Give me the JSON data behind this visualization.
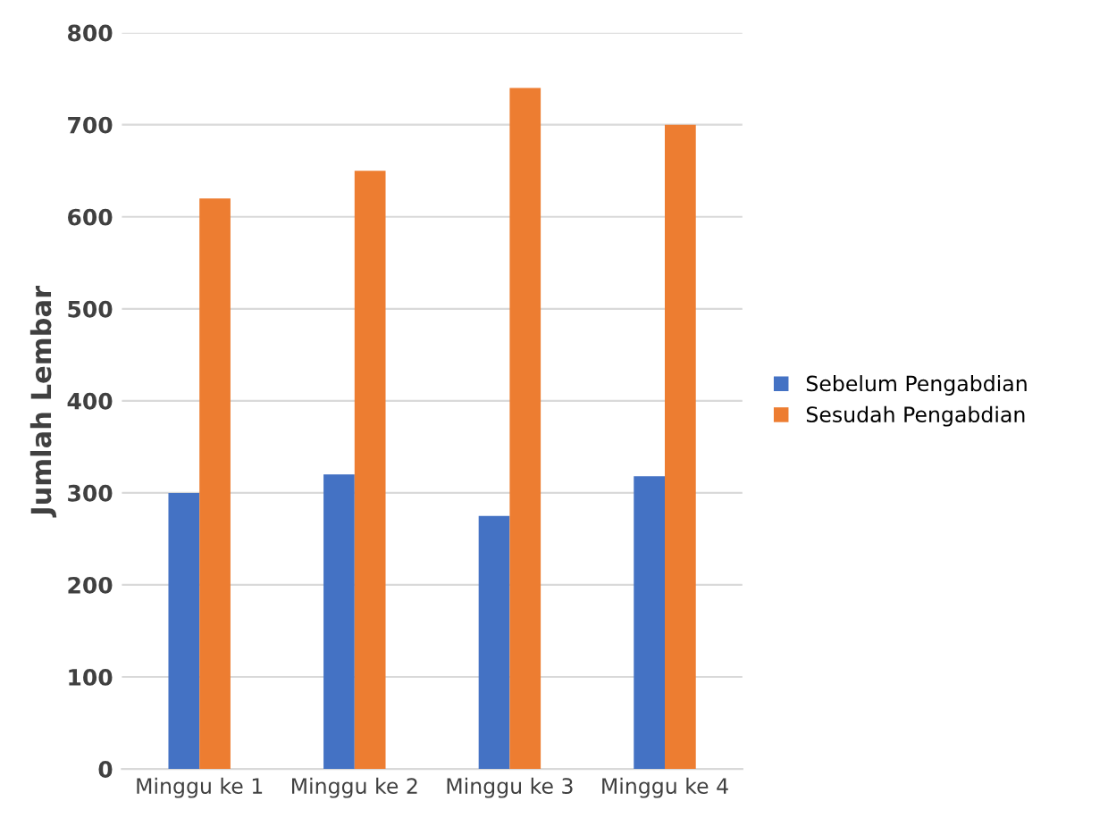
{
  "chart_data": {
    "type": "bar",
    "ylabel": "Jumlah Lembar",
    "categories": [
      "Minggu ke 1",
      "Minggu ke 2",
      "Minggu ke 3",
      "Minggu ke 4"
    ],
    "series": [
      {
        "name": "Sebelum Pengabdian",
        "color": "#4472c4",
        "values": [
          300,
          320,
          275,
          318
        ]
      },
      {
        "name": "Sesudah Pengabdian",
        "color": "#ed7d31",
        "values": [
          620,
          650,
          740,
          700
        ]
      }
    ],
    "ylim": [
      0,
      800
    ],
    "yticks": [
      0,
      100,
      200,
      300,
      400,
      500,
      600,
      700,
      800
    ],
    "grid": "y",
    "legend": "right"
  }
}
